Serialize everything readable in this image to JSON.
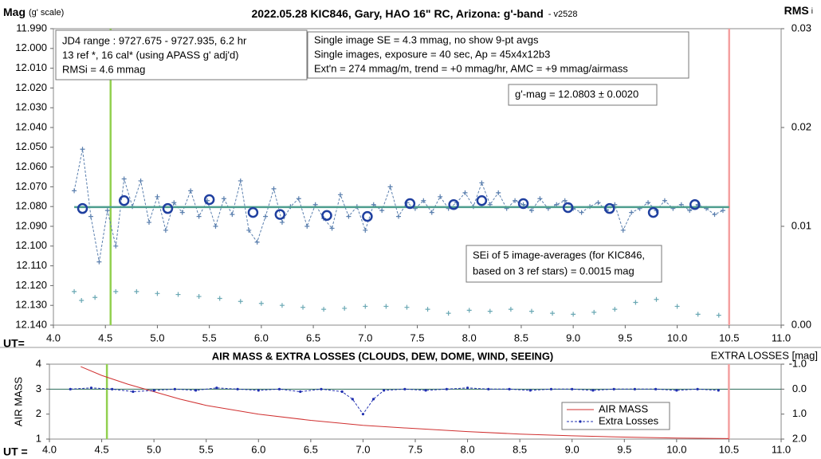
{
  "chart_data": [
    {
      "type": "line",
      "title": "2022.05.28 KIC846, Gary, HAO 16\" RC, Arizona: g'-band",
      "title_suffix": "- v2528",
      "ylabel": "Mag",
      "ylabel_note": "(g' scale)",
      "y2label": "RMS",
      "y2label_sub": "i",
      "xlabel": "UT=",
      "xlim": [
        4,
        11
      ],
      "xticks": [
        {
          "value": 4,
          "label": "4.0"
        },
        4.5,
        {
          "value": 5,
          "label": "5.0"
        },
        5.5,
        {
          "value": 6,
          "label": "6.0"
        },
        6.5,
        {
          "value": 7,
          "label": "7.0"
        },
        7.5,
        {
          "value": 8,
          "label": "8.0"
        },
        8.5,
        {
          "value": 9,
          "label": "9.0"
        },
        9.5,
        {
          "value": 10,
          "label": "10.0"
        },
        10.5,
        {
          "value": 11,
          "label": "11.0"
        }
      ],
      "ylim": [
        12.14,
        11.99
      ],
      "yticks": [
        {
          "value": 11.99,
          "label": "11.990"
        },
        {
          "value": 12.0,
          "label": "12.000"
        },
        {
          "value": 12.01,
          "label": "12.010"
        },
        {
          "value": 12.02,
          "label": "12.020"
        },
        {
          "value": 12.03,
          "label": "12.030"
        },
        {
          "value": 12.04,
          "label": "12.040"
        },
        {
          "value": 12.05,
          "label": "12.050"
        },
        {
          "value": 12.06,
          "label": "12.060"
        },
        {
          "value": 12.07,
          "label": "12.070"
        },
        {
          "value": 12.08,
          "label": "12.080"
        },
        {
          "value": 12.09,
          "label": "12.090"
        },
        {
          "value": 12.1,
          "label": "12.100"
        },
        {
          "value": 12.11,
          "label": "12.110"
        },
        {
          "value": 12.12,
          "label": "12.120"
        },
        {
          "value": 12.13,
          "label": "12.130"
        },
        {
          "value": 12.14,
          "label": "12.140"
        }
      ],
      "y2lim": [
        0,
        0.03
      ],
      "y2ticks": [
        {
          "value": 0,
          "label": "0.00"
        },
        0.01,
        0.02,
        0.03
      ],
      "grid": false,
      "vlines": [
        {
          "x": 4.55,
          "color": "#92d050"
        },
        {
          "x": 10.5,
          "color": "#f4a0a0"
        }
      ],
      "series": [
        {
          "color": "#5a7fae",
          "marker": "cross",
          "dashed": true,
          "x": [
            4.2,
            4.28,
            4.36,
            4.44,
            4.52,
            4.6,
            4.68,
            4.76,
            4.84,
            4.92,
            5.0,
            5.08,
            5.16,
            5.24,
            5.32,
            5.4,
            5.48,
            5.56,
            5.64,
            5.72,
            5.8,
            5.88,
            5.96,
            6.04,
            6.12,
            6.2,
            6.28,
            6.36,
            6.44,
            6.52,
            6.6,
            6.68,
            6.76,
            6.84,
            6.92,
            7.0,
            7.08,
            7.16,
            7.24,
            7.32,
            7.4,
            7.48,
            7.56,
            7.64,
            7.72,
            7.8,
            7.88,
            7.96,
            8.04,
            8.12,
            8.2,
            8.28,
            8.36,
            8.44,
            8.52,
            8.6,
            8.68,
            8.76,
            8.84,
            8.92,
            9.0,
            9.08,
            9.16,
            9.24,
            9.32,
            9.4,
            9.48,
            9.56,
            9.64,
            9.72,
            9.8,
            9.88,
            9.96,
            10.04,
            10.12,
            10.2,
            10.28,
            10.36,
            10.44
          ],
          "values": [
            12.072,
            12.051,
            12.085,
            12.108,
            12.082,
            12.1,
            12.066,
            12.08,
            12.067,
            12.088,
            12.075,
            12.092,
            12.078,
            12.083,
            12.072,
            12.085,
            12.077,
            12.09,
            12.076,
            12.084,
            12.067,
            12.092,
            12.098,
            12.085,
            12.071,
            12.088,
            12.08,
            12.076,
            12.09,
            12.079,
            12.086,
            12.091,
            12.074,
            12.085,
            12.08,
            12.092,
            12.079,
            12.082,
            12.07,
            12.085,
            12.078,
            12.081,
            12.077,
            12.083,
            12.075,
            12.081,
            12.078,
            12.073,
            12.08,
            12.068,
            12.079,
            12.073,
            12.081,
            12.077,
            12.079,
            12.082,
            12.076,
            12.081,
            12.079,
            12.077,
            12.081,
            12.083,
            12.08,
            12.078,
            12.082,
            12.079,
            12.092,
            12.083,
            12.081,
            12.078,
            12.082,
            12.077,
            12.081,
            12.079,
            12.082,
            12.079,
            12.081,
            12.084,
            12.082
          ]
        },
        {
          "color": "#4e9e8e",
          "marker": "none",
          "dashed": false,
          "width": 2.5,
          "x": [
            4.2,
            10.5
          ],
          "values": [
            12.0803,
            12.0803
          ]
        },
        {
          "color": "#1f3f9f",
          "marker": "circle",
          "dashed": false,
          "noline": true,
          "x": [
            4.28,
            4.68,
            5.1,
            5.5,
            5.92,
            6.18,
            6.63,
            7.02,
            7.43,
            7.85,
            8.12,
            8.52,
            8.95,
            9.35,
            9.77,
            10.17
          ],
          "values": [
            12.081,
            12.077,
            12.081,
            12.0765,
            12.083,
            12.084,
            12.0845,
            12.085,
            12.0785,
            12.079,
            12.077,
            12.0785,
            12.0805,
            12.081,
            12.083,
            12.079
          ]
        },
        {
          "color": "#6aa8b4",
          "marker": "cross",
          "dashed": false,
          "noline": true,
          "axis": "y2",
          "x": [
            4.2,
            4.27,
            4.4,
            4.6,
            4.8,
            5.0,
            5.2,
            5.4,
            5.6,
            5.8,
            6.0,
            6.2,
            6.4,
            6.6,
            6.8,
            7.0,
            7.2,
            7.4,
            7.6,
            7.8,
            8.0,
            8.2,
            8.4,
            8.6,
            8.8,
            9.0,
            9.2,
            9.4,
            9.6,
            9.8,
            10.0,
            10.2,
            10.4
          ],
          "values": [
            0.0034,
            0.0025,
            0.0028,
            0.0034,
            0.0034,
            0.0032,
            0.0031,
            0.0029,
            0.0027,
            0.0024,
            0.0022,
            0.002,
            0.0018,
            0.0016,
            0.0017,
            0.0019,
            0.0019,
            0.0018,
            0.0016,
            0.0012,
            0.0015,
            0.0014,
            0.0016,
            0.0014,
            0.0012,
            0.0011,
            0.0013,
            0.0016,
            0.0023,
            0.0026,
            0.0019,
            0.0011,
            0.001
          ]
        }
      ],
      "annotations": [
        {
          "lines": [
            "JD4 range : 9727.675 - 9727.935,  6.2 hr",
            "13 ref *, 16 cal* (using APASS g' adj'd)",
            "RMSi = 4.6 mmag"
          ]
        },
        {
          "lines": [
            "Single image SE = 4.3 mmag, no show  9-pt avgs",
            "Single images, exposure = 40 sec, Ap = 45x4x12b3",
            "Ext'n = 274 mmag/m, trend = +0 mmag/hr, AMC = +9 mmag/airmass"
          ]
        },
        {
          "lines": [
            "g'-mag = 12.0803 ± 0.0020"
          ]
        },
        {
          "lines": [
            "SEi of 5 image-averages (for KIC846,",
            "based on 3 ref stars) = 0.0015 mag"
          ]
        }
      ]
    },
    {
      "type": "line",
      "title": "AIR MASS & EXTRA LOSSES (CLOUDS, DEW, DOME, WIND, SEEING)",
      "ylabel": "AIR MASS",
      "y2label": "EXTRA LOSSES [mag]",
      "xlabel": "UT =",
      "xlim": [
        4,
        11
      ],
      "xticks": [
        {
          "value": 4,
          "label": "4.0"
        },
        4.5,
        {
          "value": 5,
          "label": "5.0"
        },
        5.5,
        {
          "value": 6,
          "label": "6.0"
        },
        6.5,
        {
          "value": 7,
          "label": "7.0"
        },
        7.5,
        {
          "value": 8,
          "label": "8.0"
        },
        8.5,
        {
          "value": 9,
          "label": "9.0"
        },
        9.5,
        {
          "value": 10,
          "label": "10.0"
        },
        10.5,
        {
          "value": 11,
          "label": "11.0"
        }
      ],
      "ylim": [
        1,
        4
      ],
      "yticks": [
        1,
        2,
        3,
        4
      ],
      "y2lim": [
        2,
        -1
      ],
      "y2ticks": [
        {
          "value": -1,
          "label": "-1.0"
        },
        {
          "value": 0,
          "label": "0.0"
        },
        {
          "value": 1,
          "label": "1.0"
        },
        {
          "value": 2,
          "label": "2.0"
        }
      ],
      "grid": false,
      "legend": "lower right",
      "vlines": [
        {
          "x": 4.55,
          "color": "#92d050"
        },
        {
          "x": 10.5,
          "color": "#f4a0a0"
        }
      ],
      "series": [
        {
          "name": "AIR MASS",
          "color": "#d03030",
          "marker": "none",
          "dashed": false,
          "x": [
            4.3,
            4.5,
            4.75,
            5.0,
            5.25,
            5.5,
            6.0,
            6.5,
            7.0,
            7.5,
            8.0,
            8.5,
            9.0,
            9.5,
            10.0,
            10.5
          ],
          "values": [
            3.9,
            3.55,
            3.2,
            2.9,
            2.6,
            2.35,
            2.0,
            1.75,
            1.55,
            1.42,
            1.3,
            1.2,
            1.13,
            1.08,
            1.04,
            1.02
          ]
        },
        {
          "name": "Extra Losses",
          "color": "#2030b0",
          "marker": "dot",
          "dashed": true,
          "axis": "y2",
          "x": [
            4.2,
            4.4,
            4.6,
            4.8,
            5.0,
            5.2,
            5.4,
            5.6,
            5.8,
            6.0,
            6.2,
            6.4,
            6.6,
            6.8,
            6.9,
            7.0,
            7.1,
            7.2,
            7.4,
            7.6,
            7.8,
            8.0,
            8.2,
            8.4,
            8.6,
            8.8,
            9.0,
            9.2,
            9.4,
            9.6,
            9.8,
            10.0,
            10.2,
            10.4
          ],
          "values": [
            0.0,
            -0.05,
            0.0,
            0.1,
            0.05,
            0.0,
            0.05,
            -0.05,
            0.0,
            0.05,
            0.0,
            0.1,
            0.0,
            0.1,
            0.4,
            1.0,
            0.4,
            0.05,
            0.0,
            0.05,
            0.0,
            -0.05,
            0.0,
            0.0,
            0.05,
            0.0,
            0.0,
            0.05,
            0.0,
            0.0,
            0.0,
            0.05,
            0.0,
            0.05
          ]
        }
      ]
    }
  ]
}
